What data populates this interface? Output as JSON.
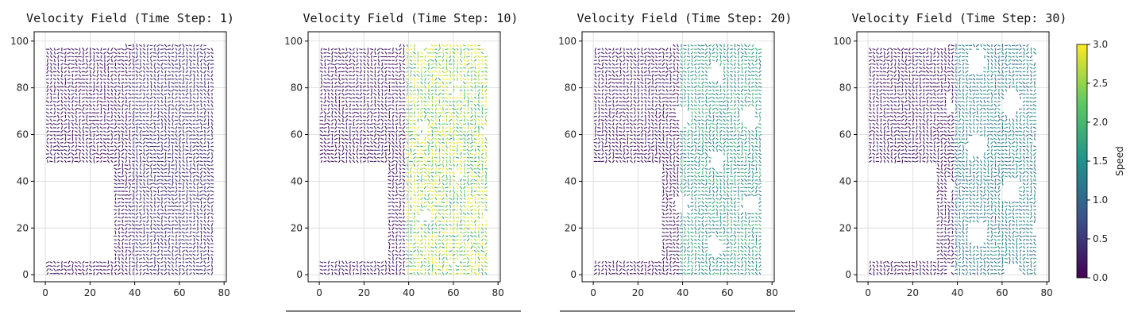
{
  "chart_data": [
    {
      "type": "quiver",
      "title": "Velocity Field (Time Step: 1)",
      "xlim": [
        -5,
        81
      ],
      "ylim": [
        -3,
        104
      ],
      "xticks": [
        0,
        20,
        40,
        60,
        80
      ],
      "yticks": [
        0,
        20,
        40,
        60,
        80,
        100
      ],
      "grid": true,
      "time_step": 1
    },
    {
      "type": "quiver",
      "title": "Velocity Field (Time Step: 10)",
      "xlim": [
        -5,
        81
      ],
      "ylim": [
        -3,
        104
      ],
      "xticks": [
        0,
        20,
        40,
        60,
        80
      ],
      "yticks": [
        0,
        20,
        40,
        60,
        80,
        100
      ],
      "grid": true,
      "time_step": 10
    },
    {
      "type": "quiver",
      "title": "Velocity Field (Time Step: 20)",
      "xlim": [
        -5,
        81
      ],
      "ylim": [
        -3,
        104
      ],
      "xticks": [
        0,
        20,
        40,
        60,
        80
      ],
      "yticks": [
        0,
        20,
        40,
        60,
        80,
        100
      ],
      "grid": true,
      "time_step": 20
    },
    {
      "type": "quiver",
      "title": "Velocity Field (Time Step: 30)",
      "xlim": [
        -5,
        81
      ],
      "ylim": [
        -3,
        104
      ],
      "xticks": [
        0,
        20,
        40,
        60,
        80
      ],
      "yticks": [
        0,
        20,
        40,
        60,
        80,
        100
      ],
      "grid": true,
      "time_step": 30
    }
  ],
  "colorbar": {
    "label": "Speed",
    "range": [
      0,
      3
    ],
    "ticks": [
      "0.0",
      "0.5",
      "1.0",
      "1.5",
      "2.0",
      "2.5",
      "3.0"
    ],
    "colormap": [
      "#440154",
      "#3b528b",
      "#21918c",
      "#5ec962",
      "#fde725"
    ]
  }
}
